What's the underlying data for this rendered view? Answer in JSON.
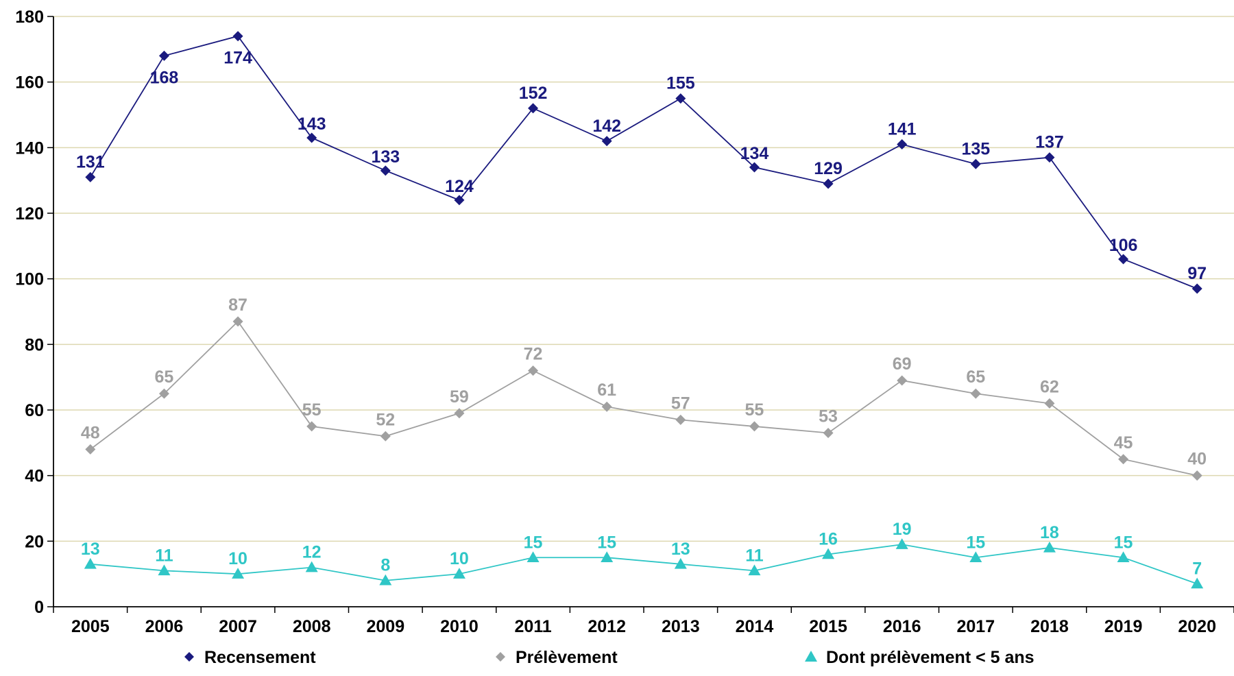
{
  "chart_data": {
    "type": "line",
    "title": "",
    "xlabel": "",
    "ylabel": "",
    "ylim": [
      0,
      180
    ],
    "yticks": [
      0,
      20,
      40,
      60,
      80,
      100,
      120,
      140,
      160,
      180
    ],
    "categories": [
      "2005",
      "2006",
      "2007",
      "2008",
      "2009",
      "2010",
      "2011",
      "2012",
      "2013",
      "2014",
      "2015",
      "2016",
      "2017",
      "2018",
      "2019",
      "2020"
    ],
    "grid": "horizontal",
    "legend_position": "bottom",
    "series": [
      {
        "name": "Recensement",
        "color": "#1a1a7e",
        "marker": "diamond",
        "values": [
          131,
          168,
          174,
          143,
          133,
          124,
          152,
          142,
          155,
          134,
          129,
          141,
          135,
          137,
          106,
          97
        ]
      },
      {
        "name": "Prélèvement",
        "color": "#a0a0a0",
        "marker": "diamond",
        "values": [
          48,
          65,
          87,
          55,
          52,
          59,
          72,
          61,
          57,
          55,
          53,
          69,
          65,
          62,
          45,
          40
        ]
      },
      {
        "name": "Dont prélèvement < 5 ans",
        "color": "#2fc6c6",
        "marker": "triangle",
        "values": [
          13,
          11,
          10,
          12,
          8,
          10,
          15,
          15,
          13,
          11,
          16,
          19,
          15,
          18,
          15,
          7
        ]
      }
    ]
  },
  "colors": {
    "grid": "#ddd8b0",
    "axis": "#000000",
    "background": "#ffffff"
  }
}
